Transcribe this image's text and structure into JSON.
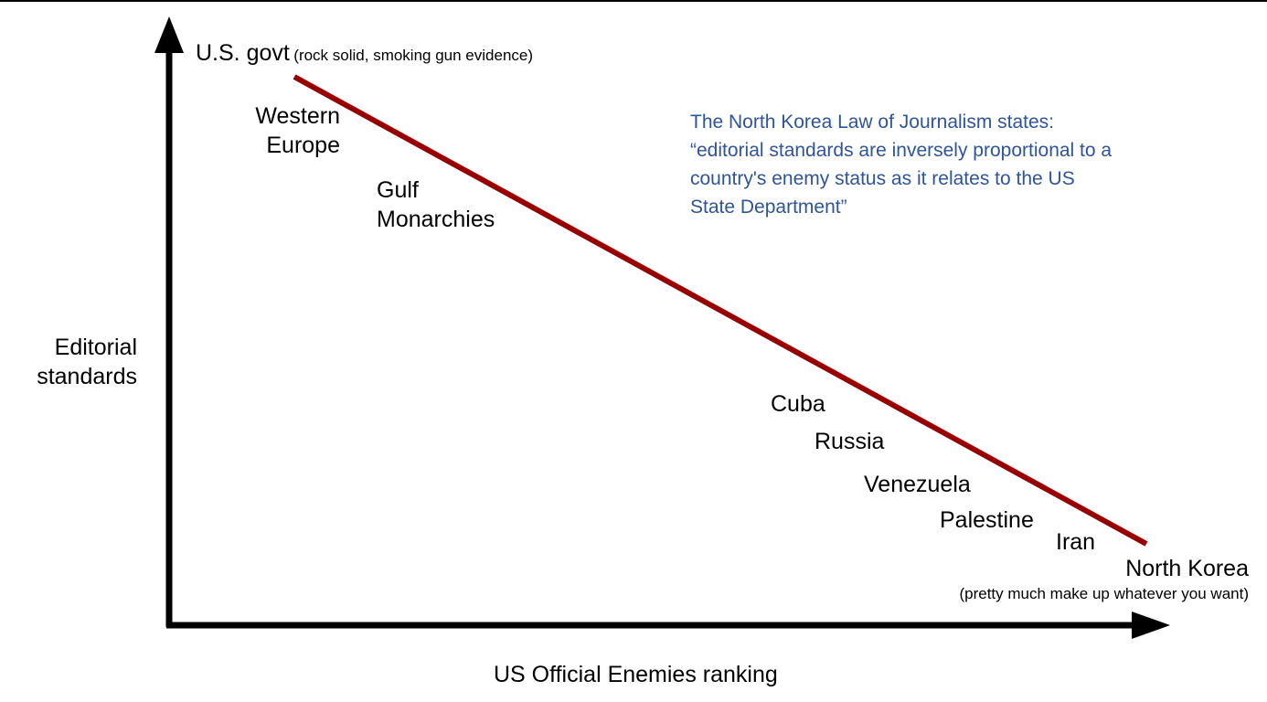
{
  "y_axis_label": [
    "Editorial",
    "standards"
  ],
  "x_axis_label": "US Official Enemies ranking",
  "top_label": {
    "main": "U.S. govt",
    "note": "(rock solid, smoking gun evidence)"
  },
  "bottom_label": {
    "main": "North Korea",
    "note": "(pretty much make up whatever you want)"
  },
  "countries": {
    "western_europe": [
      "Western",
      "Europe"
    ],
    "gulf": [
      "Gulf",
      "Monarchies"
    ],
    "cuba": "Cuba",
    "russia": "Russia",
    "venezuela": "Venezuela",
    "palestine": "Palestine",
    "iran": "Iran"
  },
  "law_note": [
    "The North Korea Law of Journalism states:",
    "“editorial standards are inversely proportional to a",
    "country's enemy status as it relates to the US",
    "State Department”"
  ],
  "colors": {
    "trend_line": "#990000",
    "axes": "#000000",
    "note_text": "#2f5597"
  }
}
